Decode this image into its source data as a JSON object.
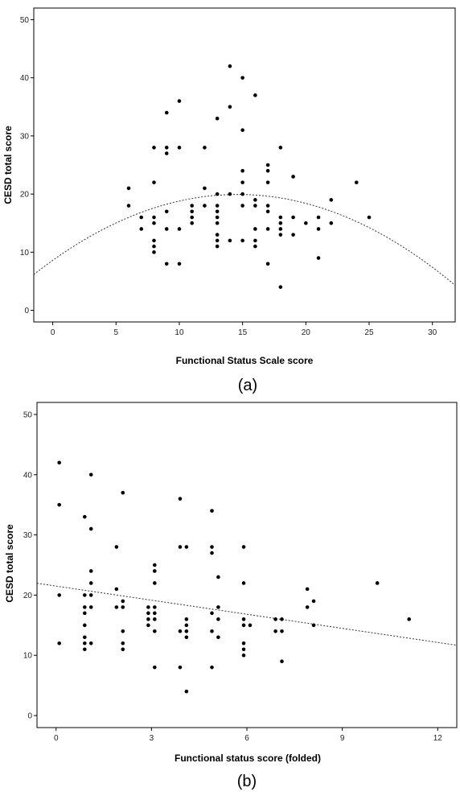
{
  "chart_data": [
    {
      "type": "scatter",
      "panel_label": "(a)",
      "xlabel": "Functional Status Scale score",
      "ylabel": "CESD total score",
      "xlim": [
        -1.5,
        31.8
      ],
      "ylim": [
        -2,
        52
      ],
      "xticks": [
        0,
        5,
        10,
        15,
        20,
        25,
        30
      ],
      "yticks": [
        0,
        10,
        20,
        30,
        40,
        50
      ],
      "grid": false,
      "fit": {
        "kind": "quadratic",
        "coefficients": [
          8.6,
          1.55,
          -0.053
        ],
        "x_range": [
          -1.5,
          31.8
        ]
      },
      "points": [
        [
          6,
          21
        ],
        [
          6,
          18
        ],
        [
          7,
          16
        ],
        [
          7,
          14
        ],
        [
          8,
          28
        ],
        [
          8,
          22
        ],
        [
          8,
          16
        ],
        [
          8,
          15
        ],
        [
          8,
          12
        ],
        [
          8,
          11
        ],
        [
          8,
          10
        ],
        [
          9,
          34
        ],
        [
          9,
          28
        ],
        [
          9,
          27
        ],
        [
          9,
          17
        ],
        [
          9,
          14
        ],
        [
          9,
          8
        ],
        [
          10,
          36
        ],
        [
          10,
          28
        ],
        [
          10,
          14
        ],
        [
          10,
          8
        ],
        [
          11,
          18
        ],
        [
          11,
          17
        ],
        [
          11,
          16
        ],
        [
          11,
          15
        ],
        [
          12,
          28
        ],
        [
          12,
          21
        ],
        [
          12,
          18
        ],
        [
          13,
          33
        ],
        [
          13,
          20
        ],
        [
          13,
          18
        ],
        [
          13,
          17
        ],
        [
          13,
          16
        ],
        [
          13,
          15
        ],
        [
          13,
          13
        ],
        [
          13,
          12
        ],
        [
          13,
          11
        ],
        [
          14,
          42
        ],
        [
          14,
          35
        ],
        [
          14,
          20
        ],
        [
          14,
          12
        ],
        [
          15,
          40
        ],
        [
          15,
          31
        ],
        [
          15,
          24
        ],
        [
          15,
          22
        ],
        [
          15,
          20
        ],
        [
          15,
          18
        ],
        [
          15,
          12
        ],
        [
          16,
          37
        ],
        [
          16,
          19
        ],
        [
          16,
          18
        ],
        [
          16,
          14
        ],
        [
          16,
          12
        ],
        [
          16,
          11
        ],
        [
          17,
          25
        ],
        [
          17,
          24
        ],
        [
          17,
          22
        ],
        [
          17,
          18
        ],
        [
          17,
          17
        ],
        [
          17,
          14
        ],
        [
          17,
          8
        ],
        [
          18,
          28
        ],
        [
          18,
          16
        ],
        [
          18,
          15
        ],
        [
          18,
          14
        ],
        [
          18,
          13
        ],
        [
          18,
          4
        ],
        [
          19,
          23
        ],
        [
          19,
          16
        ],
        [
          19,
          13
        ],
        [
          20,
          15
        ],
        [
          21,
          16
        ],
        [
          21,
          14
        ],
        [
          21,
          9
        ],
        [
          22,
          19
        ],
        [
          22,
          15
        ],
        [
          24,
          22
        ],
        [
          25,
          16
        ]
      ]
    },
    {
      "type": "scatter",
      "panel_label": "(b)",
      "xlabel": "Functional status score (folded)",
      "ylabel": "CESD total score",
      "xlim": [
        -0.6,
        12.6
      ],
      "ylim": [
        -2,
        52
      ],
      "xticks": [
        0,
        3,
        6,
        9,
        12
      ],
      "yticks": [
        0,
        10,
        20,
        30,
        40,
        50
      ],
      "grid": false,
      "fit": {
        "kind": "linear",
        "coefficients": [
          21.5,
          -0.78
        ],
        "x_range": [
          -0.6,
          12.6
        ]
      },
      "points": [
        [
          0.1,
          42
        ],
        [
          0.1,
          35
        ],
        [
          0.1,
          20
        ],
        [
          0.1,
          12
        ],
        [
          0.9,
          33
        ],
        [
          0.9,
          20
        ],
        [
          0.9,
          18
        ],
        [
          0.9,
          17
        ],
        [
          0.9,
          15
        ],
        [
          0.9,
          13
        ],
        [
          0.9,
          12
        ],
        [
          0.9,
          11
        ],
        [
          1.1,
          40
        ],
        [
          1.1,
          31
        ],
        [
          1.1,
          24
        ],
        [
          1.1,
          22
        ],
        [
          1.1,
          20
        ],
        [
          1.1,
          18
        ],
        [
          1.1,
          12
        ],
        [
          1.9,
          28
        ],
        [
          1.9,
          21
        ],
        [
          1.9,
          18
        ],
        [
          2.1,
          37
        ],
        [
          2.1,
          19
        ],
        [
          2.1,
          18
        ],
        [
          2.1,
          14
        ],
        [
          2.1,
          12
        ],
        [
          2.1,
          11
        ],
        [
          2.9,
          18
        ],
        [
          2.9,
          17
        ],
        [
          2.9,
          16
        ],
        [
          2.9,
          15
        ],
        [
          3.1,
          25
        ],
        [
          3.1,
          24
        ],
        [
          3.1,
          22
        ],
        [
          3.1,
          18
        ],
        [
          3.1,
          17
        ],
        [
          3.1,
          16
        ],
        [
          3.1,
          14
        ],
        [
          3.1,
          8
        ],
        [
          3.9,
          36
        ],
        [
          3.9,
          28
        ],
        [
          3.9,
          14
        ],
        [
          3.9,
          8
        ],
        [
          4.1,
          28
        ],
        [
          4.1,
          16
        ],
        [
          4.1,
          15
        ],
        [
          4.1,
          14
        ],
        [
          4.1,
          13
        ],
        [
          4.1,
          4
        ],
        [
          4.9,
          34
        ],
        [
          4.9,
          28
        ],
        [
          4.9,
          27
        ],
        [
          4.9,
          17
        ],
        [
          4.9,
          14
        ],
        [
          4.9,
          8
        ],
        [
          5.1,
          23
        ],
        [
          5.1,
          18
        ],
        [
          5.1,
          16
        ],
        [
          5.1,
          13
        ],
        [
          5.9,
          28
        ],
        [
          5.9,
          22
        ],
        [
          5.9,
          16
        ],
        [
          5.9,
          15
        ],
        [
          5.9,
          12
        ],
        [
          5.9,
          11
        ],
        [
          5.9,
          10
        ],
        [
          6.1,
          15
        ],
        [
          6.9,
          16
        ],
        [
          6.9,
          14
        ],
        [
          7.1,
          16
        ],
        [
          7.1,
          14
        ],
        [
          7.1,
          9
        ],
        [
          7.9,
          21
        ],
        [
          7.9,
          18
        ],
        [
          8.1,
          19
        ],
        [
          8.1,
          15
        ],
        [
          10.1,
          22
        ],
        [
          11.1,
          16
        ]
      ]
    }
  ]
}
